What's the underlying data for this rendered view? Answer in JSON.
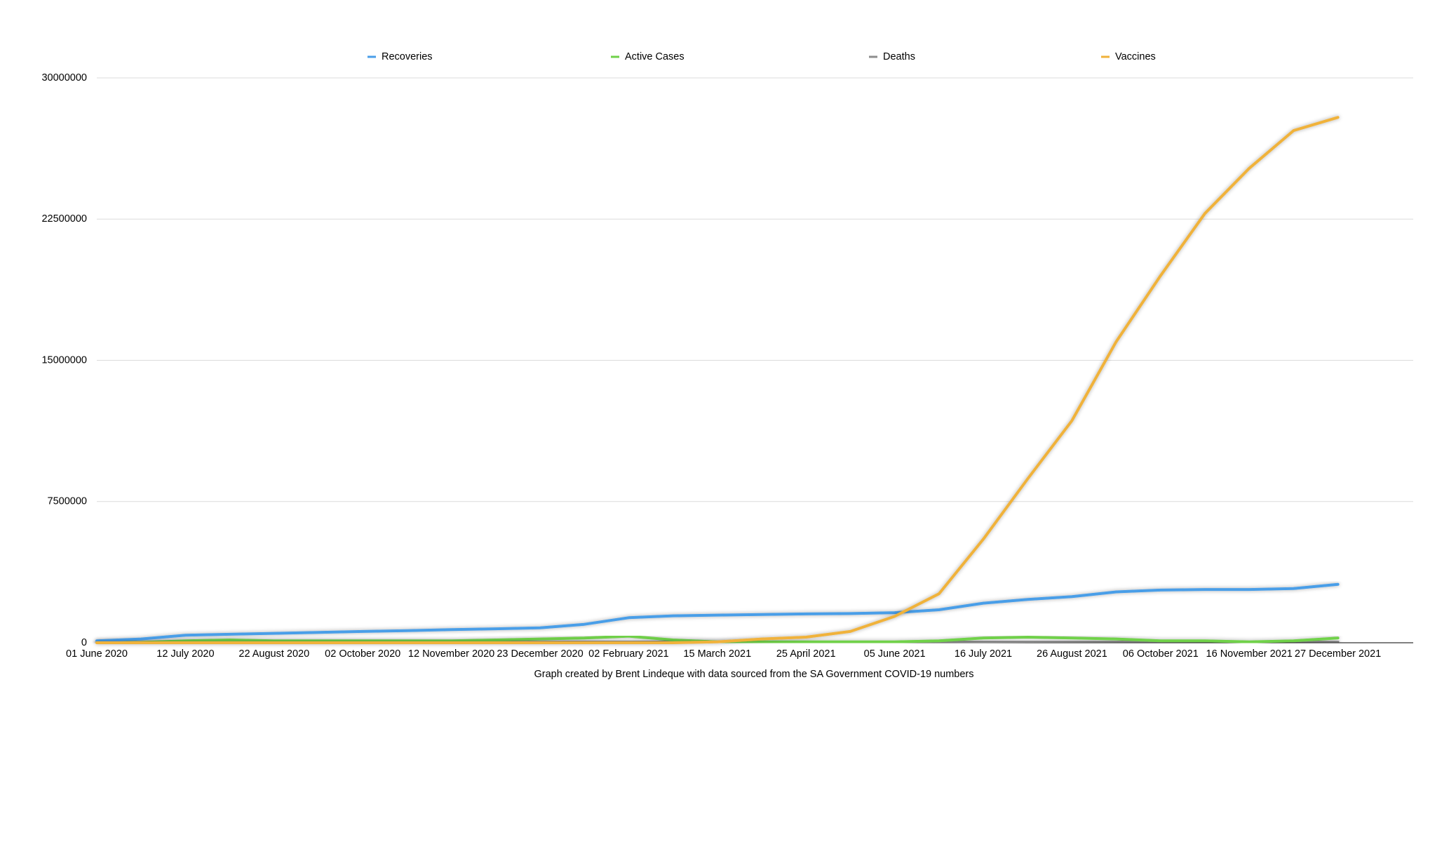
{
  "chart_data": {
    "type": "line",
    "subtitle": "Graph created by Brent Lindeque with data sourced from the SA Government COVID-19 numbers",
    "categories": [
      "01 June 2020",
      null,
      "12 July 2020",
      null,
      "22 August 2020",
      null,
      "02 October 2020",
      null,
      "12 November 2020",
      null,
      "23 December 2020",
      null,
      "02 February 2021",
      null,
      "15 March 2021",
      null,
      "25 April 2021",
      null,
      "05 June 2021",
      null,
      "16 July 2021",
      null,
      "26 August 2021",
      null,
      "06 October 2021",
      null,
      "16 November 2021",
      null,
      "27 December 2021"
    ],
    "series": [
      {
        "name": "Recoveries",
        "color": "#4a9ee8",
        "values": [
          100000,
          200000,
          400000,
          450000,
          500000,
          550000,
          600000,
          640000,
          700000,
          740000,
          790000,
          980000,
          1330000,
          1430000,
          1470000,
          1500000,
          1530000,
          1550000,
          1600000,
          1750000,
          2100000,
          2300000,
          2450000,
          2700000,
          2800000,
          2830000,
          2830000,
          2880000,
          3100000
        ]
      },
      {
        "name": "Active Cases",
        "color": "#6fd14a",
        "values": [
          0,
          20000,
          100000,
          150000,
          100000,
          100000,
          100000,
          100000,
          100000,
          150000,
          200000,
          250000,
          350000,
          150000,
          50000,
          50000,
          50000,
          50000,
          50000,
          100000,
          250000,
          300000,
          250000,
          200000,
          100000,
          100000,
          50000,
          100000,
          250000
        ]
      },
      {
        "name": "Deaths",
        "color": "#8e8e8e",
        "values": [
          0,
          0,
          1000,
          3000,
          10000,
          15000,
          17000,
          18000,
          20000,
          25000,
          30000,
          40000,
          45000,
          50000,
          52000,
          54000,
          55000,
          56000,
          58000,
          62000,
          68000,
          75000,
          80000,
          84000,
          87000,
          88000,
          89000,
          90000,
          91000
        ]
      },
      {
        "name": "Vaccines",
        "color": "#f0b23a",
        "values": [
          0,
          0,
          0,
          0,
          0,
          0,
          0,
          0,
          0,
          0,
          0,
          0,
          0,
          0,
          50000,
          200000,
          300000,
          600000,
          1400000,
          2600000,
          5500000,
          8700000,
          11800000,
          16000000,
          19500000,
          22800000,
          25200000,
          27200000,
          27900000
        ]
      }
    ],
    "ylim": [
      0,
      30000000
    ],
    "yticks": [
      0,
      7500000,
      15000000,
      22500000,
      30000000
    ],
    "grid": true
  }
}
